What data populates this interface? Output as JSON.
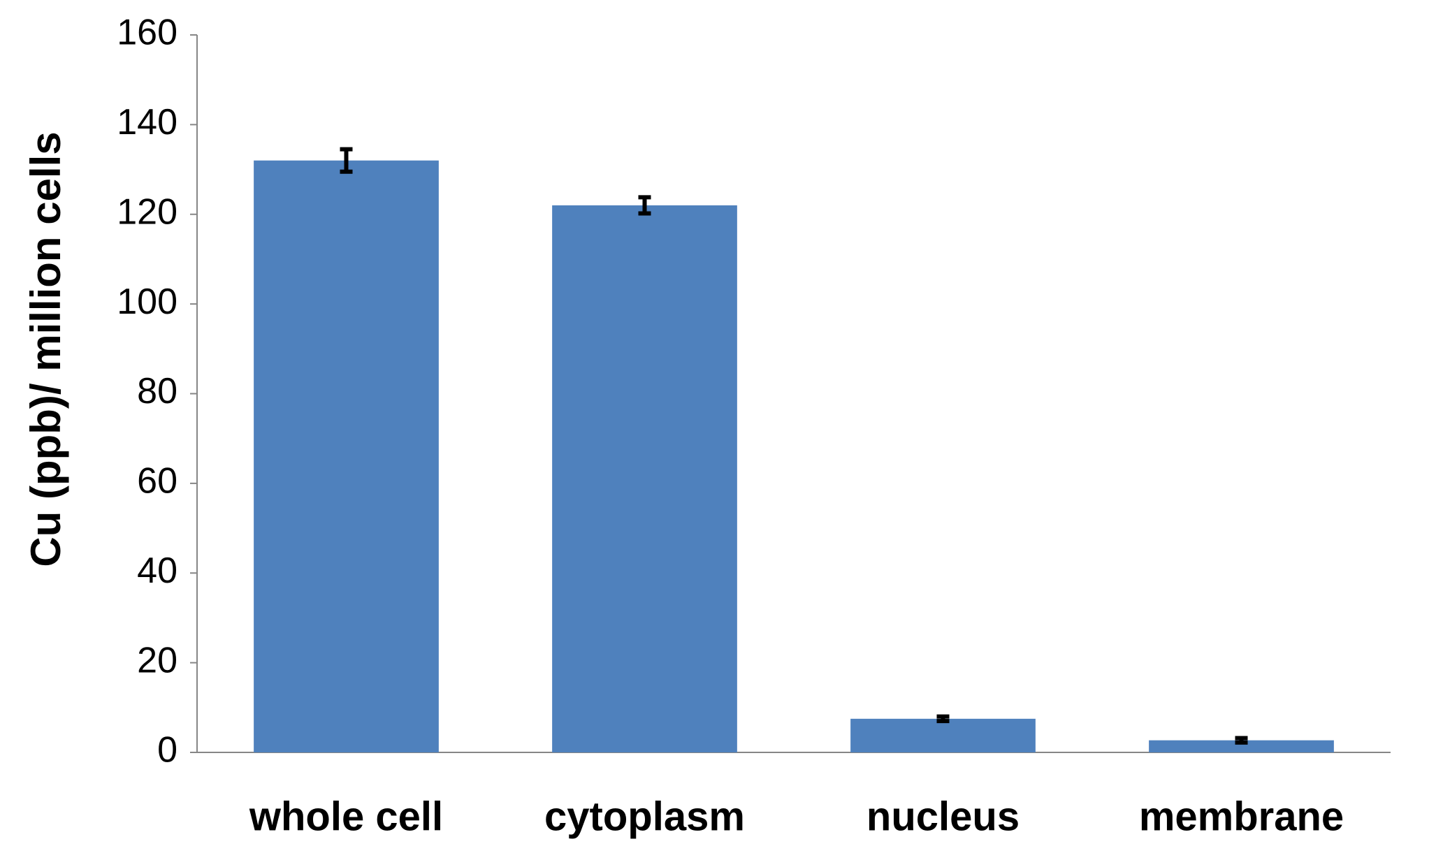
{
  "chart_data": {
    "type": "bar",
    "y_label": "Cu (ppb)/ million cells",
    "categories": [
      "whole cell",
      "cytoplasm",
      "nucleus",
      "membrane"
    ],
    "values": [
      132,
      122,
      7.5,
      2.7
    ],
    "errors": [
      2.5,
      1.8,
      0.5,
      0.5
    ],
    "color": "#4f81bd",
    "ylim": [
      0,
      160
    ],
    "yticks": [
      0,
      20,
      40,
      60,
      80,
      100,
      120,
      140,
      160
    ],
    "grid": false
  }
}
